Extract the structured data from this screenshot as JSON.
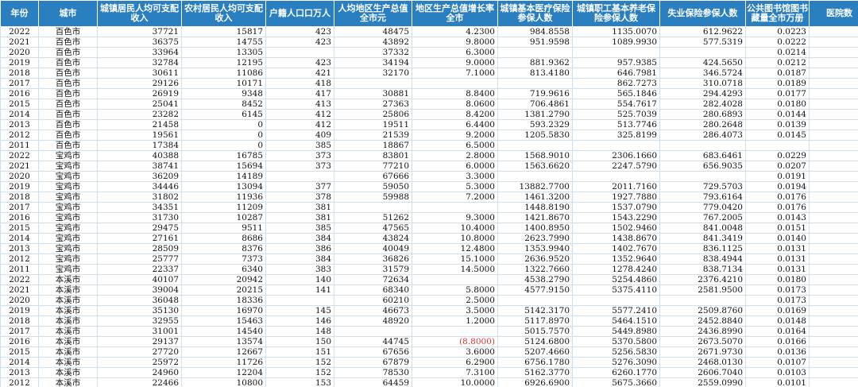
{
  "sheet": {
    "headers": [
      {
        "key": "year",
        "label": "年份"
      },
      {
        "key": "city",
        "label": "城市"
      },
      {
        "key": "urban_income",
        "label": "城镇居民人均可支配收入"
      },
      {
        "key": "rural_income",
        "label": "农村居民人均可支配收入"
      },
      {
        "key": "population",
        "label": "户籍人口口万人"
      },
      {
        "key": "gdp_per_capita",
        "label": "人均地区生产总值全市元"
      },
      {
        "key": "gdp_growth",
        "label": "地区生产总值增长率全市"
      },
      {
        "key": "medical_insured",
        "label": "城镇基本医疗保险参保人数"
      },
      {
        "key": "pension_insured",
        "label": "城镇职工基本养老保险参保人数"
      },
      {
        "key": "unemployment_insured",
        "label": "失业保险参保人数"
      },
      {
        "key": "library_books",
        "label": "公共图书馆图书藏量全市万册"
      },
      {
        "key": "hospitals",
        "label": "医院数"
      }
    ],
    "rows": [
      [
        "2022",
        "百色市",
        "37721",
        "15817",
        "423",
        "48475",
        "4.2300",
        "984.8558",
        "1135.0070",
        "612.9622",
        "0.0223",
        ""
      ],
      [
        "2021",
        "百色市",
        "36375",
        "14755",
        "423",
        "43892",
        "9.8000",
        "951.9598",
        "1089.9930",
        "577.5319",
        "0.0222",
        ""
      ],
      [
        "2020",
        "百色市",
        "33964",
        "13305",
        "",
        "37332",
        "6.3000",
        "",
        "",
        "",
        "0.0214",
        ""
      ],
      [
        "2019",
        "百色市",
        "32784",
        "12195",
        "423",
        "34194",
        "9.0000",
        "881.9362",
        "957.9385",
        "424.5650",
        "0.0212",
        ""
      ],
      [
        "2018",
        "百色市",
        "30611",
        "11086",
        "421",
        "32170",
        "7.1000",
        "813.4180",
        "646.7981",
        "346.5724",
        "0.0187",
        ""
      ],
      [
        "2017",
        "百色市",
        "29126",
        "10171",
        "418",
        "",
        "",
        "",
        "862.7273",
        "310.0718",
        "0.0189",
        ""
      ],
      [
        "2016",
        "百色市",
        "26919",
        "9348",
        "417",
        "30881",
        "8.8400",
        "719.9616",
        "565.1846",
        "294.4293",
        "0.0177",
        ""
      ],
      [
        "2015",
        "百色市",
        "25041",
        "8452",
        "413",
        "27363",
        "8.0600",
        "706.4861",
        "554.7617",
        "282.4028",
        "0.0180",
        ""
      ],
      [
        "2014",
        "百色市",
        "23282",
        "6145",
        "412",
        "25806",
        "8.4200",
        "1381.2790",
        "525.7039",
        "280.6893",
        "0.0144",
        ""
      ],
      [
        "2013",
        "百色市",
        "21458",
        "0",
        "412",
        "19511",
        "6.4400",
        "593.2329",
        "513.7746",
        "280.2648",
        "0.0139",
        ""
      ],
      [
        "2012",
        "百色市",
        "19561",
        "0",
        "409",
        "21539",
        "9.2000",
        "1205.5830",
        "325.8199",
        "286.4073",
        "0.0145",
        ""
      ],
      [
        "2011",
        "百色市",
        "17384",
        "0",
        "385",
        "18867",
        "6.5000",
        "",
        "",
        "",
        "",
        ""
      ],
      [
        "2022",
        "宝鸡市",
        "40388",
        "16785",
        "373",
        "83801",
        "2.8000",
        "1568.9010",
        "2306.1660",
        "683.6461",
        "0.0229",
        ""
      ],
      [
        "2021",
        "宝鸡市",
        "38741",
        "15694",
        "373",
        "77210",
        "6.0000",
        "1563.6620",
        "2247.5790",
        "656.9035",
        "0.0207",
        ""
      ],
      [
        "2020",
        "宝鸡市",
        "36209",
        "14189",
        "",
        "67666",
        "3.3000",
        "",
        "",
        "",
        "0.0191",
        ""
      ],
      [
        "2019",
        "宝鸡市",
        "34446",
        "13094",
        "377",
        "59050",
        "5.3000",
        "13882.7700",
        "2011.7160",
        "729.5703",
        "0.0194",
        ""
      ],
      [
        "2018",
        "宝鸡市",
        "31802",
        "11936",
        "378",
        "59988",
        "7.2000",
        "1461.3200",
        "1927.7880",
        "793.6164",
        "0.0176",
        ""
      ],
      [
        "2017",
        "宝鸡市",
        "34351",
        "11209",
        "381",
        "",
        "",
        "1448.8190",
        "1537.0790",
        "779.0420",
        "0.0176",
        ""
      ],
      [
        "2016",
        "宝鸡市",
        "31730",
        "10287",
        "381",
        "51262",
        "9.3000",
        "1421.8670",
        "1543.2290",
        "767.2005",
        "0.0143",
        ""
      ],
      [
        "2015",
        "宝鸡市",
        "29475",
        "9511",
        "385",
        "47565",
        "10.4000",
        "1400.8950",
        "1502.9460",
        "841.0048",
        "0.0151",
        ""
      ],
      [
        "2014",
        "宝鸡市",
        "27161",
        "8686",
        "384",
        "43824",
        "10.8000",
        "2623.7990",
        "1438.8670",
        "841.3419",
        "0.0140",
        ""
      ],
      [
        "2013",
        "宝鸡市",
        "28509",
        "8376",
        "386",
        "40049",
        "12.4800",
        "1353.9940",
        "1402.7670",
        "836.1125",
        "0.0131",
        ""
      ],
      [
        "2012",
        "宝鸡市",
        "25777",
        "7373",
        "384",
        "36826",
        "15.1000",
        "2636.9520",
        "1352.9640",
        "838.4944",
        "0.0131",
        ""
      ],
      [
        "2011",
        "宝鸡市",
        "22337",
        "6340",
        "383",
        "31579",
        "14.5000",
        "1322.7660",
        "1278.4240",
        "838.7134",
        "0.0131",
        ""
      ],
      [
        "2022",
        "本溪市",
        "40107",
        "20942",
        "140",
        "72634",
        "",
        "4538.2790",
        "5254.4860",
        "2376.4210",
        "0.0180",
        ""
      ],
      [
        "2021",
        "本溪市",
        "39004",
        "20215",
        "141",
        "68340",
        "5.8000",
        "4577.9150",
        "5375.4110",
        "2581.9500",
        "0.0173",
        ""
      ],
      [
        "2020",
        "本溪市",
        "36048",
        "18336",
        "",
        "60210",
        "2.5000",
        "",
        "",
        "",
        "0.0173",
        ""
      ],
      [
        "2019",
        "本溪市",
        "35130",
        "16970",
        "145",
        "46673",
        "3.5000",
        "5142.3170",
        "5577.2410",
        "2509.8760",
        "0.0169",
        ""
      ],
      [
        "2018",
        "本溪市",
        "32955",
        "15463",
        "146",
        "48920",
        "1.2000",
        "5117.8970",
        "5464.1510",
        "2452.8840",
        "0.0148",
        ""
      ],
      [
        "2017",
        "本溪市",
        "31001",
        "14540",
        "148",
        "",
        "",
        "5015.7570",
        "5449.8980",
        "2436.8990",
        "0.0164",
        ""
      ],
      [
        "2016",
        "本溪市",
        "29137",
        "13574",
        "150",
        "44745",
        "(8.8000)",
        "5124.6800",
        "5370.5800",
        "2673.5070",
        "0.0166",
        ""
      ],
      [
        "2015",
        "本溪市",
        "27720",
        "12667",
        "151",
        "67656",
        "3.6000",
        "5207.4660",
        "5256.5830",
        "2671.9730",
        "0.0136",
        ""
      ],
      [
        "2014",
        "本溪市",
        "25972",
        "11726",
        "152",
        "67879",
        "6.2900",
        "6756.1780",
        "5276.3090",
        "2468.0130",
        "0.0107",
        ""
      ],
      [
        "2013",
        "本溪市",
        "24960",
        "12204",
        "152",
        "78530",
        "7.3100",
        "5162.3770",
        "6260.1770",
        "2606.7040",
        "0.0103",
        ""
      ],
      [
        "2012",
        "本溪市",
        "22466",
        "10800",
        "153",
        "64459",
        "10.0000",
        "6926.6900",
        "5675.3660",
        "2559.0990",
        "0.0101",
        ""
      ]
    ],
    "negative_color": "#d9352f",
    "header_color": "#2a7fc0"
  }
}
